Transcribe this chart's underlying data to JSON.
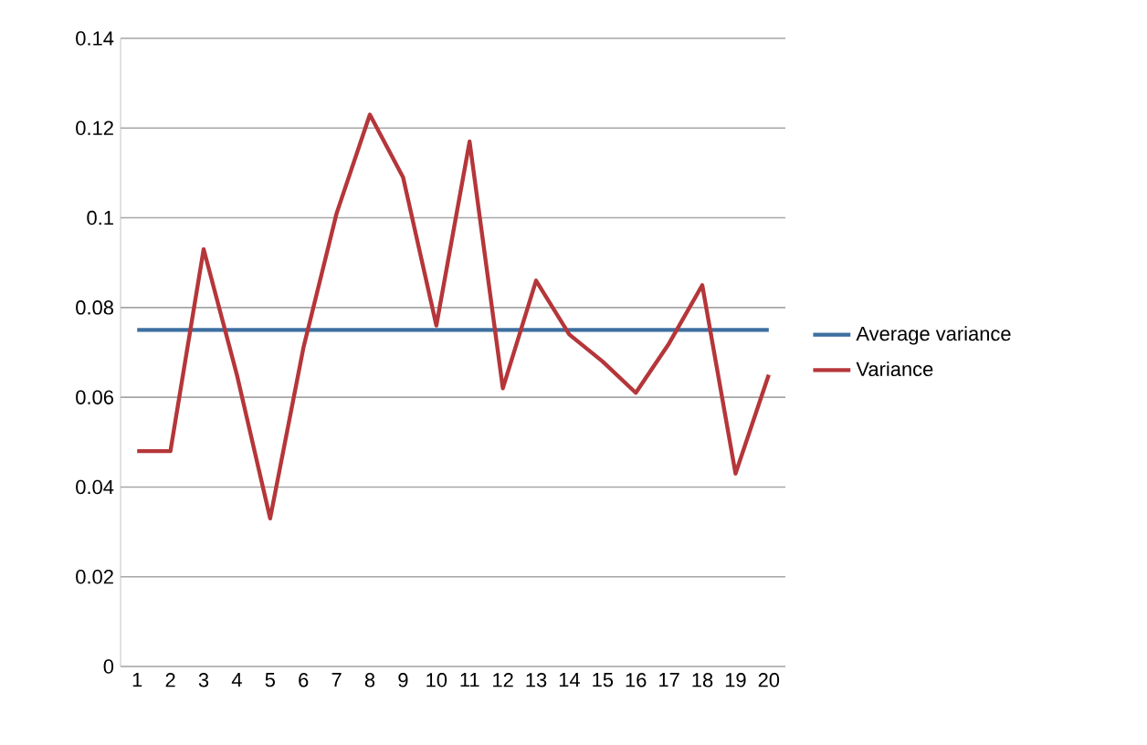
{
  "chart_data": {
    "type": "line",
    "categories": [
      "1",
      "2",
      "3",
      "4",
      "5",
      "6",
      "7",
      "8",
      "9",
      "10",
      "11",
      "12",
      "13",
      "14",
      "15",
      "16",
      "17",
      "18",
      "19",
      "20"
    ],
    "series": [
      {
        "name": "Average variance",
        "color": "#3d6fa0",
        "values": [
          0.075,
          0.075,
          0.075,
          0.075,
          0.075,
          0.075,
          0.075,
          0.075,
          0.075,
          0.075,
          0.075,
          0.075,
          0.075,
          0.075,
          0.075,
          0.075,
          0.075,
          0.075,
          0.075,
          0.075
        ]
      },
      {
        "name": "Variance",
        "color": "#b5363a",
        "values": [
          0.048,
          0.048,
          0.093,
          0.065,
          0.033,
          0.071,
          0.101,
          0.123,
          0.109,
          0.076,
          0.117,
          0.062,
          0.086,
          0.074,
          0.068,
          0.061,
          0.072,
          0.085,
          0.043,
          0.065
        ]
      }
    ],
    "ylim": [
      0,
      0.14
    ],
    "yticks": [
      0,
      0.02,
      0.04,
      0.06,
      0.08,
      0.1,
      0.12,
      0.14
    ],
    "grid": "y",
    "legend": "right",
    "marker": "none",
    "line_style": "solid"
  }
}
